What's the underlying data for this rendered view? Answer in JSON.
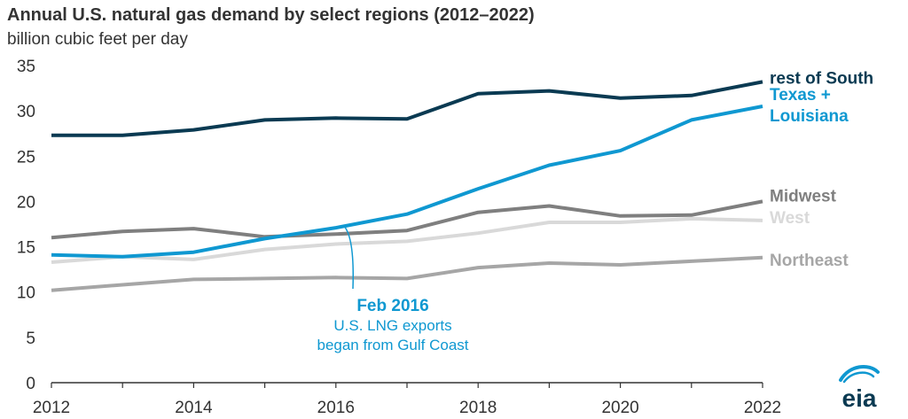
{
  "chart_data": {
    "type": "line",
    "title": "Annual U.S. natural gas demand by select regions (2012–2022)",
    "subtitle": "billion cubic feet per day",
    "x": [
      2012,
      2013,
      2014,
      2015,
      2016,
      2017,
      2018,
      2019,
      2020,
      2021,
      2022
    ],
    "xlim": [
      2012,
      2022
    ],
    "ylim": [
      0,
      35
    ],
    "x_ticks": [
      "2012",
      "2014",
      "2016",
      "2018",
      "2020",
      "2022"
    ],
    "y_ticks": [
      "0",
      "5",
      "10",
      "15",
      "20",
      "25",
      "30",
      "35"
    ],
    "grid": false,
    "series": [
      {
        "name": "rest of South",
        "label_lines": [
          "rest of South"
        ],
        "color": "#0a3a52",
        "values": [
          27.3,
          27.3,
          27.9,
          29.0,
          29.2,
          29.1,
          31.9,
          32.2,
          31.4,
          31.7,
          33.2
        ]
      },
      {
        "name": "Texas + Louisiana",
        "label_lines": [
          "Texas +",
          "Louisiana"
        ],
        "color": "#0f98d1",
        "values": [
          14.1,
          13.9,
          14.4,
          15.9,
          17.1,
          18.6,
          21.4,
          24.0,
          25.6,
          29.0,
          30.5
        ]
      },
      {
        "name": "Midwest",
        "label_lines": [
          "Midwest"
        ],
        "color": "#7f7f7f",
        "values": [
          16.0,
          16.7,
          17.0,
          16.1,
          16.4,
          16.8,
          18.8,
          19.5,
          18.4,
          18.5,
          20.0
        ]
      },
      {
        "name": "West",
        "label_lines": [
          "West"
        ],
        "color": "#d9d9d9",
        "values": [
          13.3,
          13.9,
          13.6,
          14.7,
          15.3,
          15.6,
          16.5,
          17.7,
          17.7,
          18.1,
          17.9
        ]
      },
      {
        "name": "Northeast",
        "label_lines": [
          "Northeast"
        ],
        "color": "#a6a6a6",
        "values": [
          10.2,
          10.8,
          11.4,
          11.5,
          11.6,
          11.5,
          12.7,
          13.2,
          13.0,
          13.4,
          13.8
        ]
      }
    ],
    "annotation": {
      "title": "Feb 2016",
      "lines": [
        "U.S. LNG exports",
        "began from Gulf Coast"
      ],
      "x": 2016.1,
      "y": 17.4,
      "color": "#0f98d1"
    }
  },
  "logo": {
    "text": "eia",
    "color": "#0a3a52",
    "accent": "#0f98d1"
  }
}
